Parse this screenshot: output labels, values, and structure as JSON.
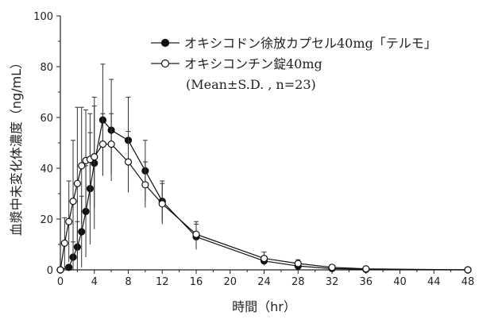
{
  "chart_data": {
    "type": "line",
    "title": "",
    "xlabel": "時間（hr）",
    "ylabel": "血漿中未変化体濃度（ng/mL）",
    "xlim": [
      0,
      48
    ],
    "ylim": [
      0,
      100
    ],
    "xticks": [
      0,
      4,
      8,
      12,
      16,
      20,
      24,
      28,
      32,
      36,
      40,
      44,
      48
    ],
    "yticks": [
      0,
      20,
      40,
      60,
      80,
      100
    ],
    "grid": false,
    "legend_position": "top-right",
    "legend_note": "(Mean±S.D. , n=23)",
    "series": [
      {
        "name": "オキシコドン徐放カプセル40mg「テルモ」",
        "marker": "filled-circle",
        "color": "#111111",
        "points": [
          {
            "x": 0,
            "y": 0,
            "sd": 0
          },
          {
            "x": 1,
            "y": 1,
            "sd": 1
          },
          {
            "x": 1.5,
            "y": 5,
            "sd": 6
          },
          {
            "x": 2,
            "y": 9,
            "sd": 10
          },
          {
            "x": 2.5,
            "y": 15,
            "sd": 14
          },
          {
            "x": 3,
            "y": 23,
            "sd": 18
          },
          {
            "x": 3.5,
            "y": 32,
            "sd": 22
          },
          {
            "x": 4,
            "y": 42,
            "sd": 26
          },
          {
            "x": 5,
            "y": 59,
            "sd": 22
          },
          {
            "x": 6,
            "y": 55,
            "sd": 20
          },
          {
            "x": 8,
            "y": 51,
            "sd": 17
          },
          {
            "x": 10,
            "y": 39,
            "sd": 12
          },
          {
            "x": 12,
            "y": 27,
            "sd": 8
          },
          {
            "x": 16,
            "y": 13,
            "sd": 5
          },
          {
            "x": 24,
            "y": 3.5,
            "sd": 1.8
          },
          {
            "x": 28,
            "y": 1.5,
            "sd": 1.2
          },
          {
            "x": 32,
            "y": 0.5,
            "sd": 0.5
          },
          {
            "x": 36,
            "y": 0.2,
            "sd": 0.2
          },
          {
            "x": 48,
            "y": 0,
            "sd": 0
          }
        ]
      },
      {
        "name": "オキシコンチン錠40mg",
        "marker": "open-circle",
        "color": "#111111",
        "points": [
          {
            "x": 0,
            "y": 0,
            "sd": 0
          },
          {
            "x": 0.5,
            "y": 10.5,
            "sd": 10
          },
          {
            "x": 1,
            "y": 19,
            "sd": 16
          },
          {
            "x": 1.5,
            "y": 27,
            "sd": 24
          },
          {
            "x": 2,
            "y": 34,
            "sd": 30
          },
          {
            "x": 2.5,
            "y": 41,
            "sd": 23
          },
          {
            "x": 3,
            "y": 43,
            "sd": 20
          },
          {
            "x": 3.5,
            "y": 43.5,
            "sd": 18
          },
          {
            "x": 4,
            "y": 44.5,
            "sd": 20
          },
          {
            "x": 5,
            "y": 49.5,
            "sd": 12
          },
          {
            "x": 6,
            "y": 49.5,
            "sd": 12
          },
          {
            "x": 8,
            "y": 42.5,
            "sd": 12
          },
          {
            "x": 10,
            "y": 33.5,
            "sd": 9
          },
          {
            "x": 12,
            "y": 26,
            "sd": 8
          },
          {
            "x": 16,
            "y": 14,
            "sd": 5
          },
          {
            "x": 24,
            "y": 4.5,
            "sd": 2.5
          },
          {
            "x": 28,
            "y": 2.5,
            "sd": 1.5
          },
          {
            "x": 32,
            "y": 1,
            "sd": 0.8
          },
          {
            "x": 36,
            "y": 0.4,
            "sd": 0.3
          },
          {
            "x": 48,
            "y": 0,
            "sd": 0
          }
        ]
      }
    ]
  }
}
